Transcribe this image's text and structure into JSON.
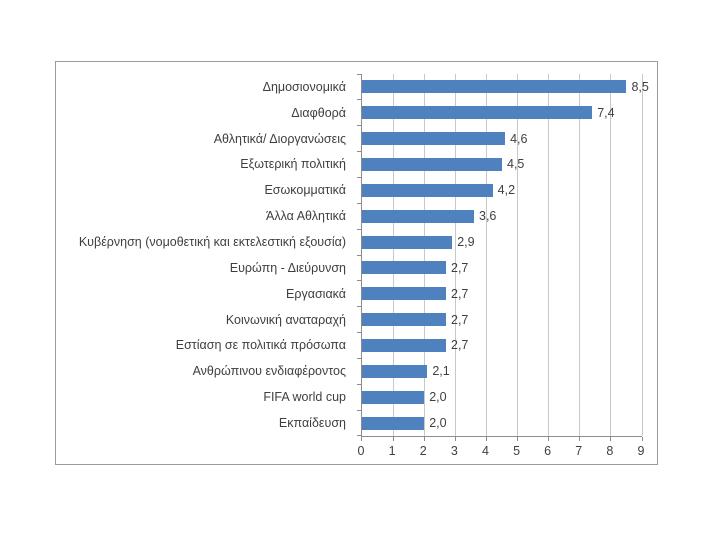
{
  "chart_data": {
    "type": "bar",
    "orientation": "horizontal",
    "title": "",
    "xlabel": "",
    "ylabel": "",
    "categories": [
      "Δημοσιονομικά",
      "Διαφθορά",
      "Αθλητικά/ Διοργανώσεις",
      "Εξωτερική πολιτική",
      "Εσωκομματικά",
      "Άλλα Αθλητικά",
      "Κυβέρνηση (νομοθετική και εκτελεστική εξουσία)",
      "Ευρώπη - Διεύρυνση",
      "Εργασιακά",
      "Κοινωνική αναταραχή",
      "Εστίαση σε πολιτικά πρόσωπα",
      "Ανθρώπινου ενδιαφέροντος",
      "FIFA world cup",
      "Εκπαίδευση"
    ],
    "values": [
      8.5,
      7.4,
      4.6,
      4.5,
      4.2,
      3.6,
      2.9,
      2.7,
      2.7,
      2.7,
      2.7,
      2.1,
      2.0,
      2.0
    ],
    "value_labels": [
      "8,5",
      "7,4",
      "4,6",
      "4,5",
      "4,2",
      "3,6",
      "2,9",
      "2,7",
      "2,7",
      "2,7",
      "2,7",
      "2,1",
      "2,0",
      "2,0"
    ],
    "xlim": [
      0,
      9
    ],
    "x_ticks": [
      "0",
      "1",
      "2",
      "3",
      "4",
      "5",
      "6",
      "7",
      "8",
      "9"
    ],
    "grid": true,
    "legend": "none",
    "colors": {
      "bar": "#4e81bd",
      "gridline": "#c6c9cc",
      "axis": "#8c8c8c",
      "text": "#3f3f3f",
      "frame_border": "#9b9b9b",
      "background": "#ffffff"
    }
  }
}
